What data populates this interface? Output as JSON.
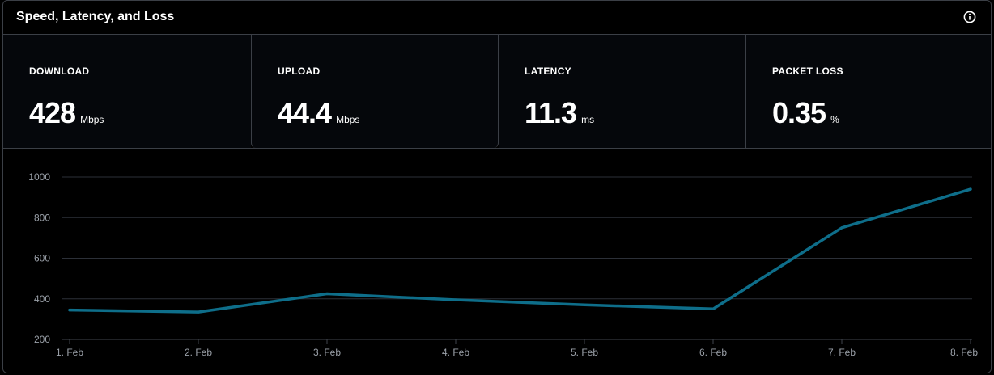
{
  "header": {
    "title": "Speed, Latency, and Loss",
    "info_icon": "info-icon"
  },
  "stats": [
    {
      "label": "DOWNLOAD",
      "value": "428",
      "unit": "Mbps"
    },
    {
      "label": "UPLOAD",
      "value": "44.4",
      "unit": "Mbps"
    },
    {
      "label": "LATENCY",
      "value": "11.3",
      "unit": "ms"
    },
    {
      "label": "PACKET LOSS",
      "value": "0.35",
      "unit": "%"
    }
  ],
  "colors": {
    "line": "#0e6e8a",
    "grid": "#2c3038",
    "border": "#3b3f46"
  },
  "chart_data": {
    "type": "line",
    "categories": [
      "1. Feb",
      "2. Feb",
      "3. Feb",
      "4. Feb",
      "5. Feb",
      "6. Feb",
      "7. Feb",
      "8. Feb"
    ],
    "series": [
      {
        "values": [
          345,
          335,
          425,
          395,
          370,
          350,
          750,
          940
        ]
      }
    ],
    "yticks": [
      "200",
      "400",
      "600",
      "800",
      "1000"
    ],
    "ylim": [
      200,
      1000
    ],
    "grid": true,
    "legend": "none"
  }
}
